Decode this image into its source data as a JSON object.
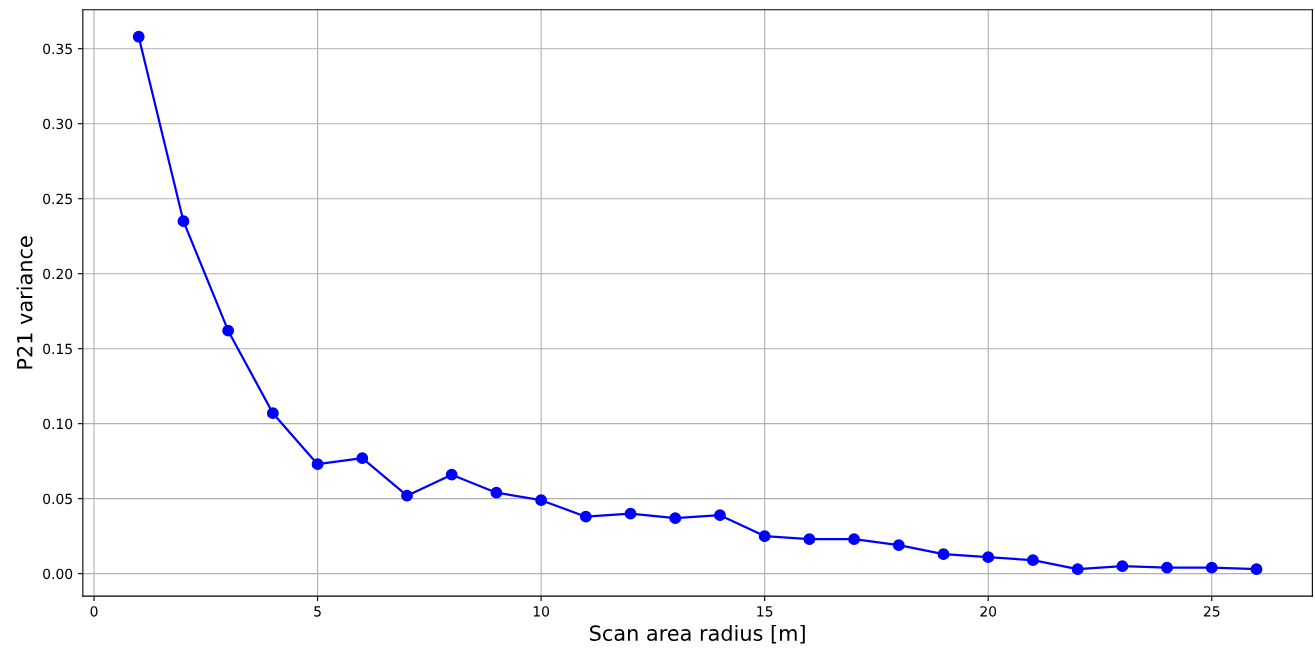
{
  "chart_data": {
    "type": "line",
    "xlabel": "Scan area radius [m]",
    "ylabel": "P21 variance",
    "x": [
      1,
      2,
      3,
      4,
      5,
      6,
      7,
      8,
      9,
      10,
      11,
      12,
      13,
      14,
      15,
      16,
      17,
      18,
      19,
      20,
      21,
      22,
      23,
      24,
      25,
      26
    ],
    "series": [
      {
        "color": "#0000ff",
        "values": [
          0.358,
          0.235,
          0.162,
          0.107,
          0.073,
          0.077,
          0.052,
          0.066,
          0.054,
          0.049,
          0.038,
          0.04,
          0.037,
          0.039,
          0.025,
          0.023,
          0.023,
          0.019,
          0.013,
          0.011,
          0.009,
          0.003,
          0.005,
          0.004,
          0.004,
          0.003
        ]
      }
    ],
    "xlim": [
      -0.25,
      27.25
    ],
    "xticks": [
      0,
      5,
      10,
      15,
      20,
      25
    ],
    "ylim": [
      -0.015,
      0.376
    ],
    "yticks": [
      {
        "value": 0,
        "label": "0.00"
      },
      {
        "value": 0.05,
        "label": "0.05"
      },
      {
        "value": 0.1,
        "label": "0.10"
      },
      {
        "value": 0.15,
        "label": "0.15"
      },
      {
        "value": 0.2,
        "label": "0.20"
      },
      {
        "value": 0.25,
        "label": "0.25"
      },
      {
        "value": 0.3,
        "label": "0.30"
      },
      {
        "value": 0.35,
        "label": "0.35"
      }
    ],
    "grid": true,
    "marker": "circle",
    "line_style": "solid"
  }
}
